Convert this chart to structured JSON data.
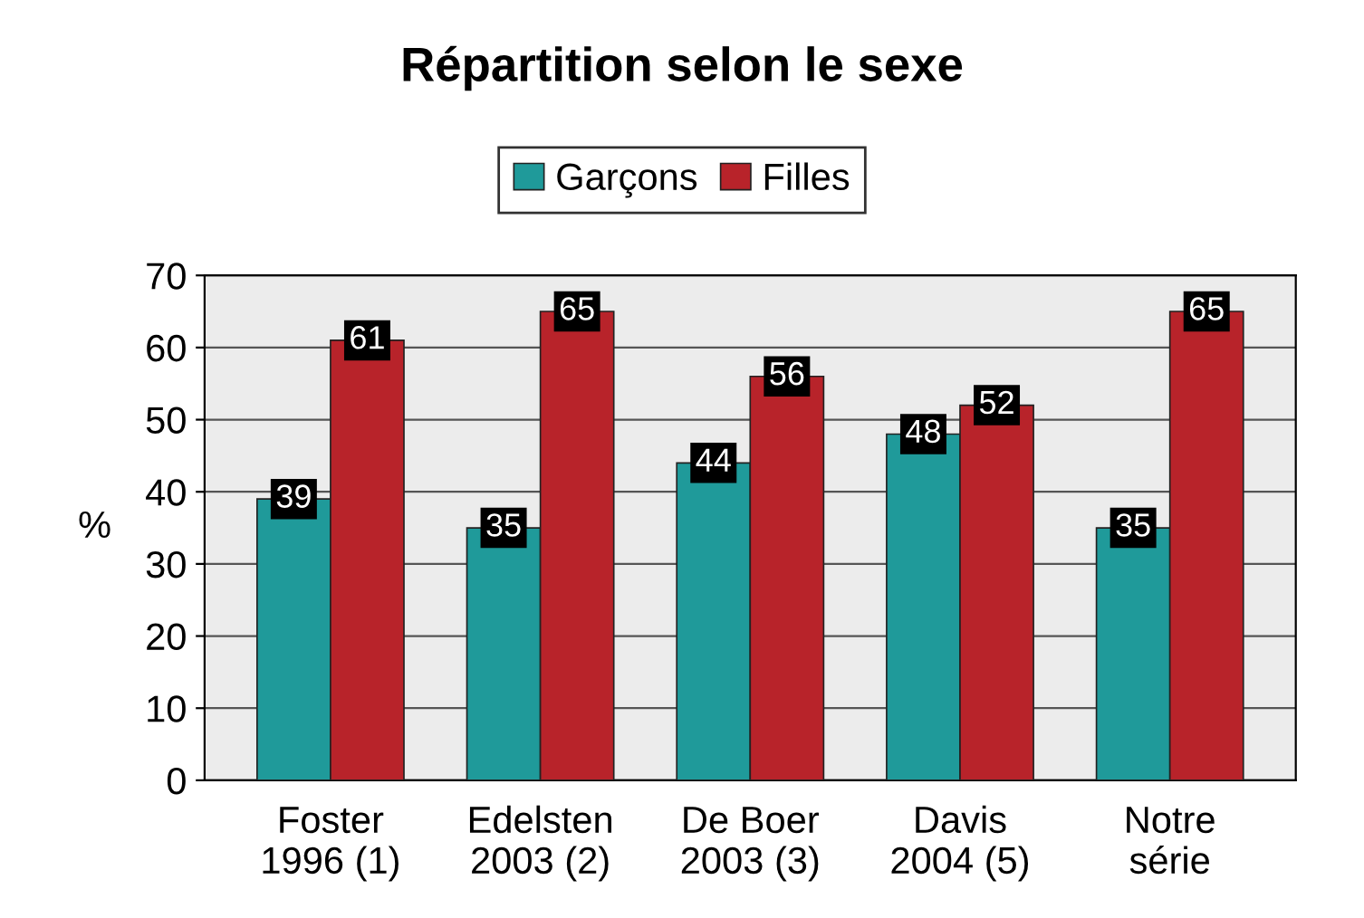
{
  "chart_data": {
    "type": "bar",
    "title": "Répartition selon le sexe",
    "ylabel": "%",
    "categories": [
      "Foster\n1996 (1)",
      "Edelsten\n2003 (2)",
      "De Boer\n2003 (3)",
      "Davis\n2004 (5)",
      "Notre\nsérie"
    ],
    "series": [
      {
        "name": "Garçons",
        "color": "#1f9a9a",
        "values": [
          39,
          35,
          44,
          48,
          35
        ]
      },
      {
        "name": "Filles",
        "color": "#b8232a",
        "values": [
          61,
          65,
          56,
          52,
          65
        ]
      }
    ],
    "ylim": [
      0,
      70
    ],
    "yticks": [
      0,
      10,
      20,
      30,
      40,
      50,
      60,
      70
    ],
    "grid": "y",
    "legend": "top",
    "data_labels": true
  }
}
